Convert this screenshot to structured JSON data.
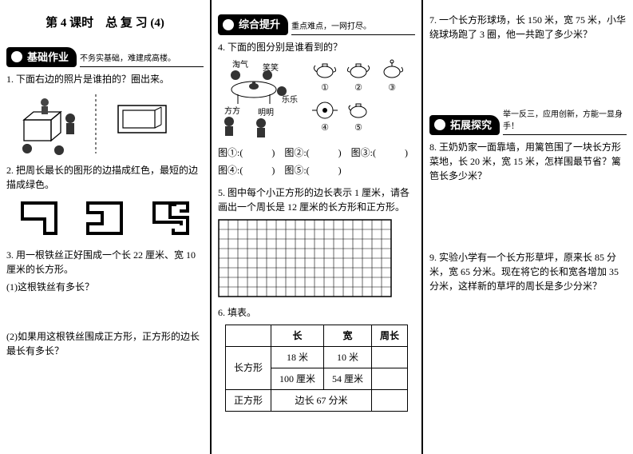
{
  "title": "第 4 课时　总 复 习 (4)",
  "sections": {
    "basic": {
      "name": "基础作业",
      "tagline": "不务实基础，难建成高楼。"
    },
    "comp": {
      "name": "综合提升",
      "tagline": "重点难点，一网打尽。"
    },
    "ext": {
      "name": "拓展探究",
      "tagline": "举一反三，应用创新，方能一显身手！"
    }
  },
  "col1": {
    "q1": "1. 下面右边的照片是谁拍的？圈出来。",
    "q2": "2. 把周长最长的图形的边描成红色，最短的边描成绿色。",
    "q3": "3. 用一根铁丝正好围成一个长 22 厘米、宽 10 厘米的长方形。",
    "q3a": "(1)这根铁丝有多长？",
    "q3b": "(2)如果用这根铁丝围成正方形，正方形的边长最长有多长？"
  },
  "col2": {
    "q4": "4. 下面的图分别是谁看到的？",
    "labels": {
      "taoqi": "淘气",
      "xiaoxiao": "笑笑",
      "lele": "乐乐",
      "fangfang": "方方",
      "mingming": "明明"
    },
    "circles": [
      "①",
      "②",
      "③",
      "④",
      "⑤"
    ],
    "q4_blanks_a": "图①:(　　　)　图②:(　　　)　图③:(　　　)",
    "q4_blanks_b": "图④:(　　　)　图⑤:(　　　)",
    "q5": "5. 图中每个小正方形的边长表示 1 厘米，请各画出一个周长是 12 厘米的长方形和正方形。",
    "q6": "6. 填表。",
    "table": {
      "headers": [
        "",
        "长",
        "宽",
        "周长"
      ],
      "r1_label": "长方形",
      "r1a": [
        "18 米",
        "10 米",
        ""
      ],
      "r1b": [
        "100 厘米",
        "54 厘米",
        ""
      ],
      "r2_label": "正方形",
      "r2_span": "边长 67 分米",
      "r2_last": ""
    },
    "grid": {
      "cols": 18,
      "rows": 8,
      "cell": 12
    }
  },
  "col3": {
    "q7": "7. 一个长方形球场，长 150 米，宽 75 米，小华绕球场跑了 3 圈，他一共跑了多少米？",
    "q8": "8. 王奶奶家一面靠墙，用篱笆围了一块长方形菜地，长 20 米，宽 15 米，怎样围最节省？篱笆长多少米？",
    "q9": "9. 实验小学有一个长方形草坪，原来长 85 分米，宽 65 分米。现在将它的长和宽各增加 35 分米，这样新的草坪的周长是多少分米？"
  }
}
